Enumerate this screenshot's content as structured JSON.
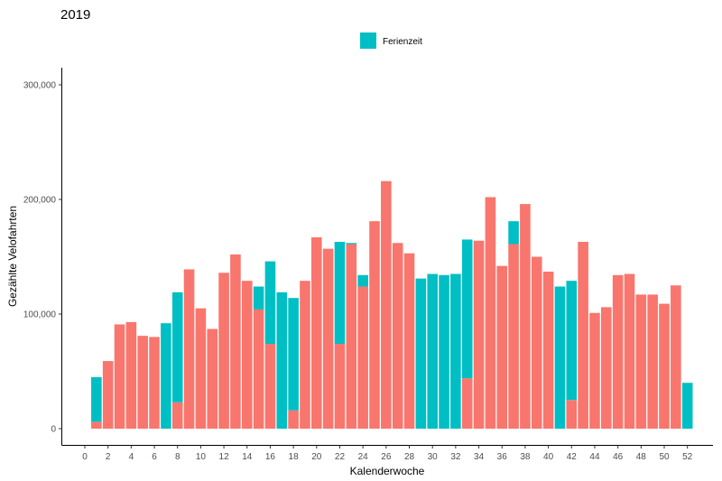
{
  "chart_data": {
    "type": "bar",
    "title": "2019",
    "xlabel": "Kalenderwoche",
    "ylabel": "Gezählte Velofahrten",
    "xlim": [
      0,
      52
    ],
    "ylim": [
      0,
      300000
    ],
    "x_ticks": [
      "0",
      "2",
      "4",
      "6",
      "8",
      "10",
      "12",
      "14",
      "16",
      "18",
      "20",
      "22",
      "24",
      "26",
      "28",
      "30",
      "32",
      "34",
      "36",
      "38",
      "40",
      "42",
      "44",
      "46",
      "48",
      "50",
      "52"
    ],
    "y_ticks": [
      "0",
      "100,000",
      "200,000",
      "300,000"
    ],
    "grid": false,
    "legend_position": "top",
    "legend": [
      {
        "label": "Ferienzeit",
        "color": "#00BFC4"
      }
    ],
    "colors": {
      "default": "#F8766D",
      "ferienzeit": "#00BFC4"
    },
    "weeks": [
      1,
      2,
      3,
      4,
      5,
      6,
      7,
      8,
      9,
      10,
      11,
      12,
      13,
      14,
      15,
      16,
      17,
      18,
      19,
      20,
      21,
      22,
      23,
      24,
      25,
      26,
      27,
      28,
      29,
      30,
      31,
      32,
      33,
      34,
      35,
      36,
      37,
      38,
      39,
      40,
      41,
      42,
      43,
      44,
      45,
      46,
      47,
      48,
      49,
      50,
      51,
      52
    ],
    "series": [
      {
        "name": "",
        "color": "#F8766D",
        "values": [
          6000,
          59000,
          91000,
          93000,
          81000,
          80000,
          0,
          23000,
          139000,
          105000,
          87000,
          136000,
          152000,
          129000,
          104000,
          74000,
          0,
          16000,
          129000,
          167000,
          157000,
          74000,
          161000,
          124000,
          181000,
          216000,
          162000,
          153000,
          0,
          0,
          0,
          0,
          44000,
          164000,
          202000,
          142000,
          161000,
          196000,
          150000,
          137000,
          0,
          25000,
          163000,
          101000,
          106000,
          134000,
          135000,
          117000,
          117000,
          109000,
          125000,
          0
        ]
      },
      {
        "name": "Ferienzeit",
        "color": "#00BFC4",
        "values": [
          39000,
          0,
          0,
          0,
          0,
          0,
          92000,
          96000,
          0,
          0,
          0,
          0,
          0,
          0,
          20000,
          72000,
          119000,
          98000,
          0,
          0,
          0,
          89000,
          1000,
          10000,
          0,
          0,
          0,
          0,
          131000,
          135000,
          134000,
          135000,
          121000,
          0,
          0,
          0,
          20000,
          0,
          0,
          0,
          124000,
          104000,
          0,
          0,
          0,
          0,
          0,
          0,
          0,
          0,
          0,
          40000
        ]
      }
    ]
  }
}
